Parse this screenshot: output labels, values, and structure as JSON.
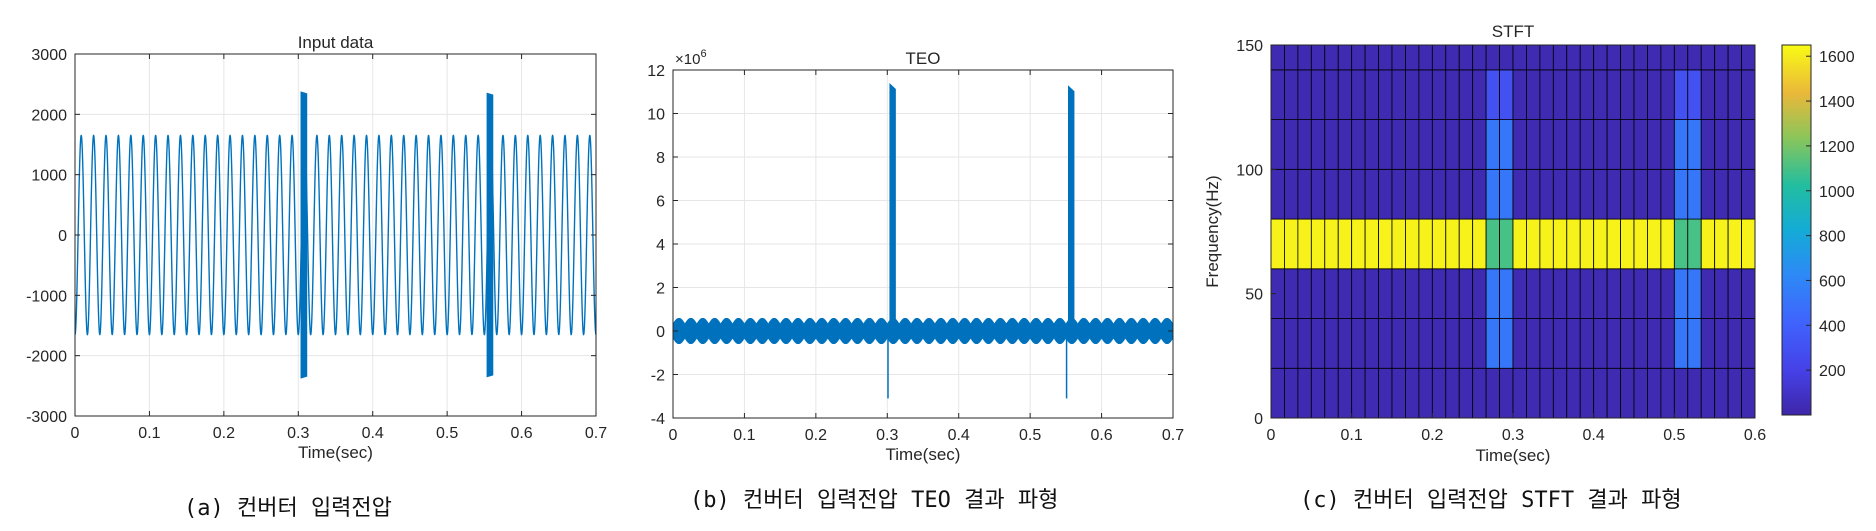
{
  "captions": {
    "a": "(a) 컨버터 입력전압",
    "b": "(b) 컨버터 입력전압 TEO 결과 파형",
    "c": "(c) 컨버터 입력전압 STFT 결과 파형"
  },
  "colors": {
    "line": "#0072BD",
    "grid": "#e6e6e6",
    "axis": "#262626"
  },
  "chart_data": [
    {
      "type": "line",
      "title": "Input data",
      "xlabel": "Time(sec)",
      "ylabel": "",
      "xlim": [
        0,
        0.7
      ],
      "ylim": [
        -3000,
        3000
      ],
      "xticks": [
        "0",
        "0.1",
        "0.2",
        "0.3",
        "0.4",
        "0.5",
        "0.6",
        "0.7"
      ],
      "yticks": [
        "-3000",
        "-2000",
        "-1000",
        "0",
        "1000",
        "2000",
        "3000"
      ],
      "grid": true,
      "series": [
        {
          "signal": "sinusoid",
          "frequency_hz": 60,
          "amplitude": 1650,
          "disturbances": [
            {
              "start": 0.303,
              "end": 0.312,
              "peak": 2380,
              "trough": -2380
            },
            {
              "start": 0.553,
              "end": 0.562,
              "peak": 2360,
              "trough": -2360
            }
          ]
        }
      ]
    },
    {
      "type": "line",
      "title": "TEO",
      "xlabel": "Time(sec)",
      "ylabel": "",
      "exponent_label": "×10",
      "exponent_power": "6",
      "xlim": [
        0,
        0.7
      ],
      "ylim": [
        -4,
        12
      ],
      "xticks": [
        "0",
        "0.1",
        "0.2",
        "0.3",
        "0.4",
        "0.5",
        "0.6",
        "0.7"
      ],
      "yticks": [
        "-4",
        "-2",
        "0",
        "2",
        "4",
        "6",
        "8",
        "10",
        "12"
      ],
      "grid": true,
      "series": [
        {
          "baseline_min": -0.6,
          "baseline_max": 0.6,
          "bursts": [
            {
              "start": 0.303,
              "end": 0.312,
              "peak": 11.4,
              "dip_time": 0.301,
              "dip": -3.1
            },
            {
              "start": 0.553,
              "end": 0.562,
              "peak": 11.3,
              "dip_time": 0.551,
              "dip": -3.1
            }
          ]
        }
      ]
    },
    {
      "type": "heatmap",
      "title": "STFT",
      "xlabel": "Time(sec)",
      "ylabel": "Frequency(Hz)",
      "xlim": [
        0,
        0.6
      ],
      "ylim": [
        0,
        150
      ],
      "xticks": [
        "0",
        "0.1",
        "0.2",
        "0.3",
        "0.4",
        "0.5",
        "0.6"
      ],
      "yticks": [
        "0",
        "50",
        "100",
        "150"
      ],
      "time_bins": 36,
      "freq_edges": [
        0,
        20,
        40,
        60,
        80,
        100,
        120,
        140,
        150
      ],
      "colorbar_ticks": [
        "200",
        "400",
        "600",
        "800",
        "1000",
        "1200",
        "1400",
        "1600"
      ],
      "colorbar_range": [
        0,
        1650
      ],
      "background_value": 30,
      "rows": [
        {
          "freq_from": 60,
          "freq_to": 80,
          "value": 1620
        },
        {
          "freq_from": 60,
          "freq_to": 80,
          "bins": [
            16,
            17,
            30,
            31
          ],
          "value": 1100
        },
        {
          "freq_from": 20,
          "freq_to": 60,
          "bins": [
            16,
            17,
            30,
            31
          ],
          "value": 520
        },
        {
          "freq_from": 80,
          "freq_to": 120,
          "bins": [
            16,
            17,
            30,
            31
          ],
          "value": 520
        },
        {
          "freq_from": 120,
          "freq_to": 140,
          "bins": [
            16,
            17,
            30,
            31
          ],
          "value": 300
        }
      ]
    }
  ]
}
